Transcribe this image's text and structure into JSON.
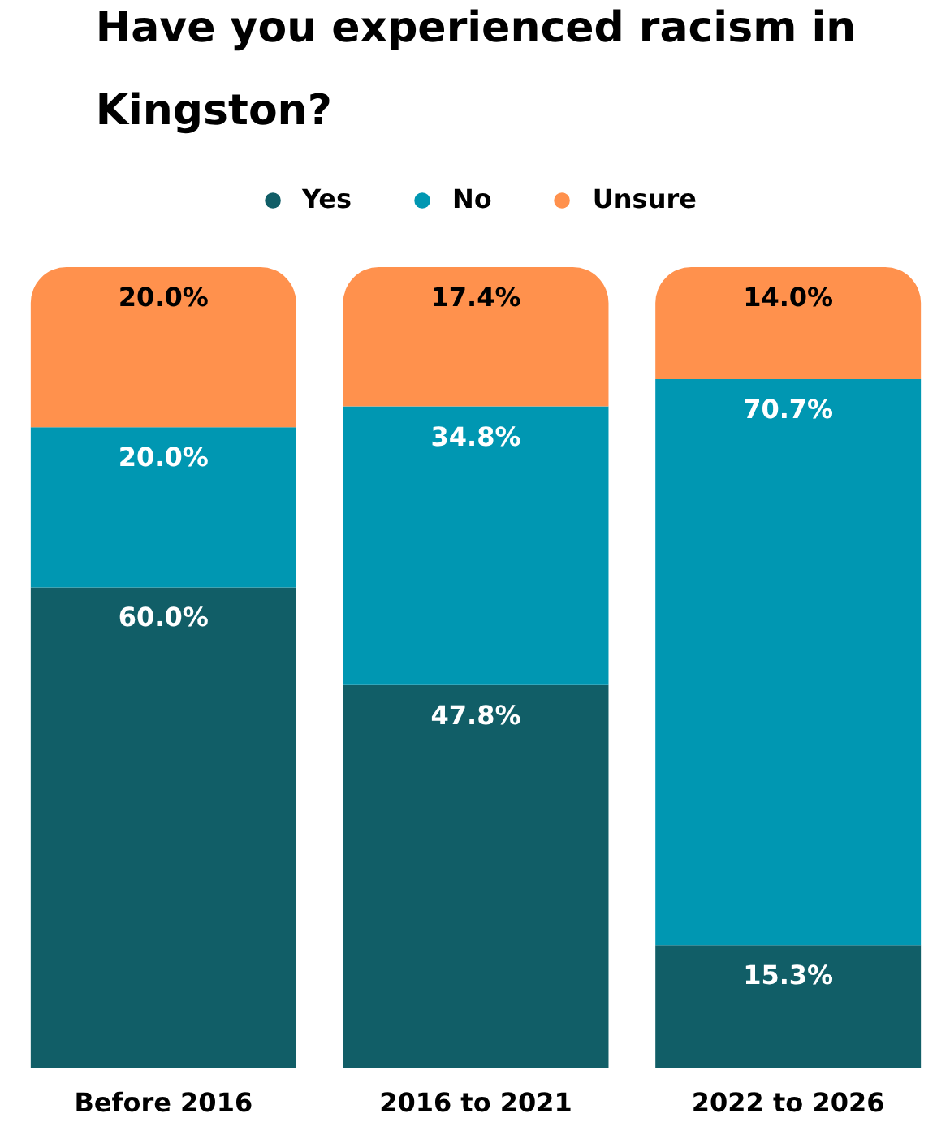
{
  "chart_data": {
    "type": "bar",
    "title": "Have you experienced racism in Kingston?",
    "categories": [
      "Before 2016",
      "2016 to 2021",
      "2022 to 2026"
    ],
    "stacked": true,
    "ylim": [
      0,
      100
    ],
    "tick_labels": "x",
    "legend": "top",
    "series": [
      {
        "name": "Yes",
        "color": "#115e67",
        "values": [
          60.0,
          47.8,
          15.3
        ],
        "value_labels": [
          "60.0%",
          "47.8%",
          "15.3%"
        ]
      },
      {
        "name": "No",
        "color": "#0097b2",
        "values": [
          20.0,
          34.8,
          70.7
        ],
        "value_labels": [
          "20.0%",
          "34.8%",
          "70.7%"
        ]
      },
      {
        "name": "Unsure",
        "color": "#ff914d",
        "values": [
          20.0,
          17.4,
          14.0
        ],
        "value_labels": [
          "20.0%",
          "17.4%",
          "14.0%"
        ]
      }
    ]
  }
}
